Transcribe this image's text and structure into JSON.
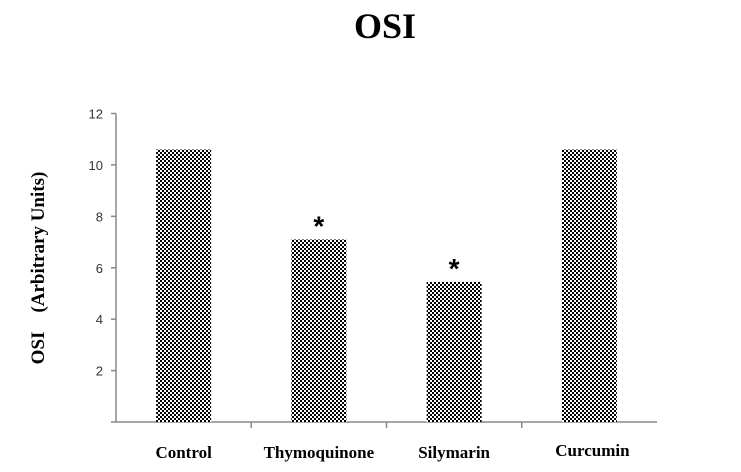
{
  "chart_data": {
    "type": "bar",
    "title": "OSI",
    "ylabel": "OSI    (Arbitrary Units)",
    "xlabel": "",
    "categories": [
      "Control",
      "Thymoquinone",
      "Silymarin",
      "Curcumin"
    ],
    "values": [
      10.6,
      7.1,
      5.45,
      10.6
    ],
    "annotations": [
      "",
      "*",
      "*",
      ""
    ],
    "ylim": [
      0,
      12
    ],
    "yticks": [
      2,
      4,
      6,
      8,
      10,
      12
    ],
    "grid": false,
    "bar_fill": "checkerboard",
    "colors": {
      "bar": "#000000",
      "axis": "#888888"
    }
  }
}
